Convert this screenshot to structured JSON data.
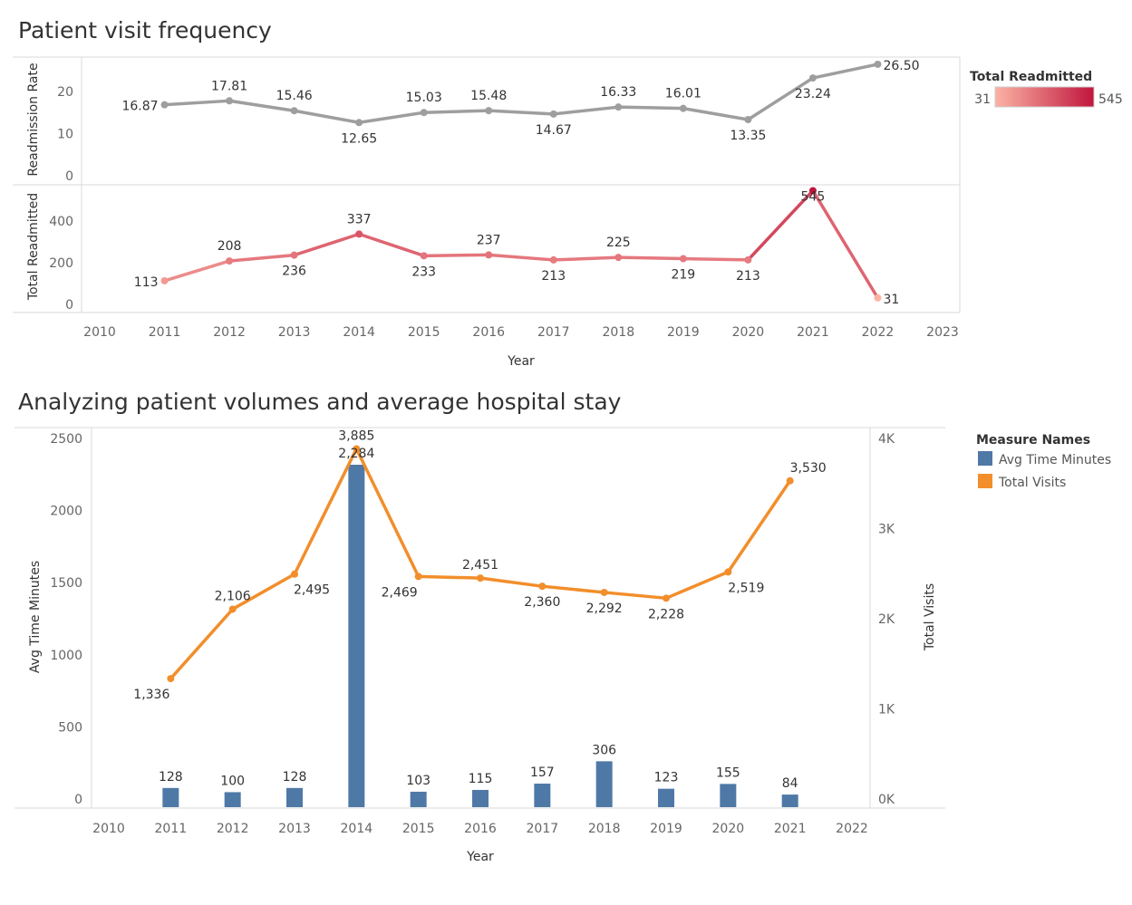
{
  "chart_data": [
    {
      "type": "line",
      "title": "Patient visit frequency",
      "xlabel": "Year",
      "x_ticks": [
        "2010",
        "2011",
        "2012",
        "2013",
        "2014",
        "2015",
        "2016",
        "2017",
        "2018",
        "2019",
        "2020",
        "2021",
        "2022",
        "2023"
      ],
      "x": [
        2011,
        2012,
        2013,
        2014,
        2015,
        2016,
        2017,
        2018,
        2019,
        2020,
        2021,
        2022
      ],
      "x_labels": [
        "2011",
        "2012",
        "2013",
        "2014",
        "2015",
        "2016",
        "2017",
        "2018",
        "2019",
        "2020",
        "2021",
        "2022"
      ],
      "grid": false,
      "panels": [
        {
          "name": "Readmission Rate",
          "ylabel": "Readmission Rate",
          "ylim": [
            0,
            28
          ],
          "y_ticks": [
            0,
            10,
            20
          ],
          "color": "#9e9e9e",
          "values": [
            16.87,
            17.81,
            15.46,
            12.65,
            15.03,
            15.48,
            14.67,
            16.33,
            16.01,
            13.35,
            23.24,
            26.5
          ],
          "labels": [
            "16.87",
            "17.81",
            "15.46",
            "12.65",
            "15.03",
            "15.48",
            "14.67",
            "16.33",
            "16.01",
            "13.35",
            "23.24",
            "26.50"
          ],
          "label_pos": [
            "left",
            "above",
            "above",
            "below",
            "above",
            "above",
            "below",
            "above",
            "above",
            "below",
            "below",
            "right"
          ]
        },
        {
          "name": "Total Readmitted",
          "ylabel": "Total Readmitted",
          "ylim": [
            0,
            560
          ],
          "y_ticks": [
            0,
            200,
            400
          ],
          "color_scale": true,
          "values": [
            113,
            208,
            236,
            337,
            233,
            237,
            213,
            225,
            219,
            213,
            545,
            31
          ],
          "labels": [
            "113",
            "208",
            "236",
            "337",
            "233",
            "237",
            "213",
            "225",
            "219",
            "213",
            "545",
            "31"
          ],
          "label_pos": [
            "left",
            "above",
            "below",
            "above",
            "below",
            "above",
            "below",
            "above",
            "below",
            "below",
            "center",
            "right"
          ]
        }
      ],
      "legend": {
        "title": "Total Readmitted",
        "min_label": "31",
        "max_label": "545",
        "min_color": "#fbb3a5",
        "max_color": "#c0153c",
        "placement": "top-right"
      }
    },
    {
      "type": "bar",
      "title": "Analyzing patient volumes and average hospital stay",
      "xlabel": "Year",
      "x_ticks": [
        "2010",
        "2011",
        "2012",
        "2013",
        "2014",
        "2015",
        "2016",
        "2017",
        "2018",
        "2019",
        "2020",
        "2021",
        "2022"
      ],
      "x": [
        2011,
        2012,
        2013,
        2014,
        2015,
        2016,
        2017,
        2018,
        2019,
        2020,
        2021
      ],
      "grid": false,
      "series": [
        {
          "name": "Avg Time Minutes",
          "type": "bar",
          "axis": "left",
          "color": "#4e79a7",
          "values": [
            128,
            100,
            128,
            2284,
            103,
            115,
            157,
            306,
            123,
            155,
            84
          ],
          "labels": [
            "128",
            "100",
            "128",
            "2,284",
            "103",
            "115",
            "157",
            "306",
            "123",
            "155",
            "84"
          ]
        },
        {
          "name": "Total Visits",
          "type": "line",
          "axis": "right",
          "color": "#f28e2b",
          "values": [
            1336,
            2106,
            2495,
            3885,
            2469,
            2451,
            2360,
            2292,
            2228,
            2519,
            3530
          ],
          "labels": [
            "1,336",
            "2,106",
            "2,495",
            "3,885",
            "2,469",
            "2,451",
            "2,360",
            "2,292",
            "2,228",
            "2,519",
            "3,530"
          ],
          "label_pos": [
            "below",
            "above",
            "below",
            "above",
            "below",
            "above",
            "below",
            "below",
            "below",
            "below",
            "above"
          ]
        }
      ],
      "y_left": {
        "label": "Avg Time Minutes",
        "ylim": [
          0,
          2500
        ],
        "ticks": [
          0,
          500,
          1000,
          1500,
          2000,
          2500
        ],
        "tick_labels": [
          "0",
          "500",
          "1000",
          "1500",
          "2000",
          "2500"
        ]
      },
      "y_right": {
        "label": "Total Visits",
        "ylim": [
          0,
          4000
        ],
        "ticks": [
          0,
          1000,
          2000,
          3000,
          4000
        ],
        "tick_labels": [
          "0K",
          "1K",
          "2K",
          "3K",
          "4K"
        ]
      },
      "legend": {
        "title": "Measure Names",
        "placement": "top-right"
      }
    }
  ]
}
